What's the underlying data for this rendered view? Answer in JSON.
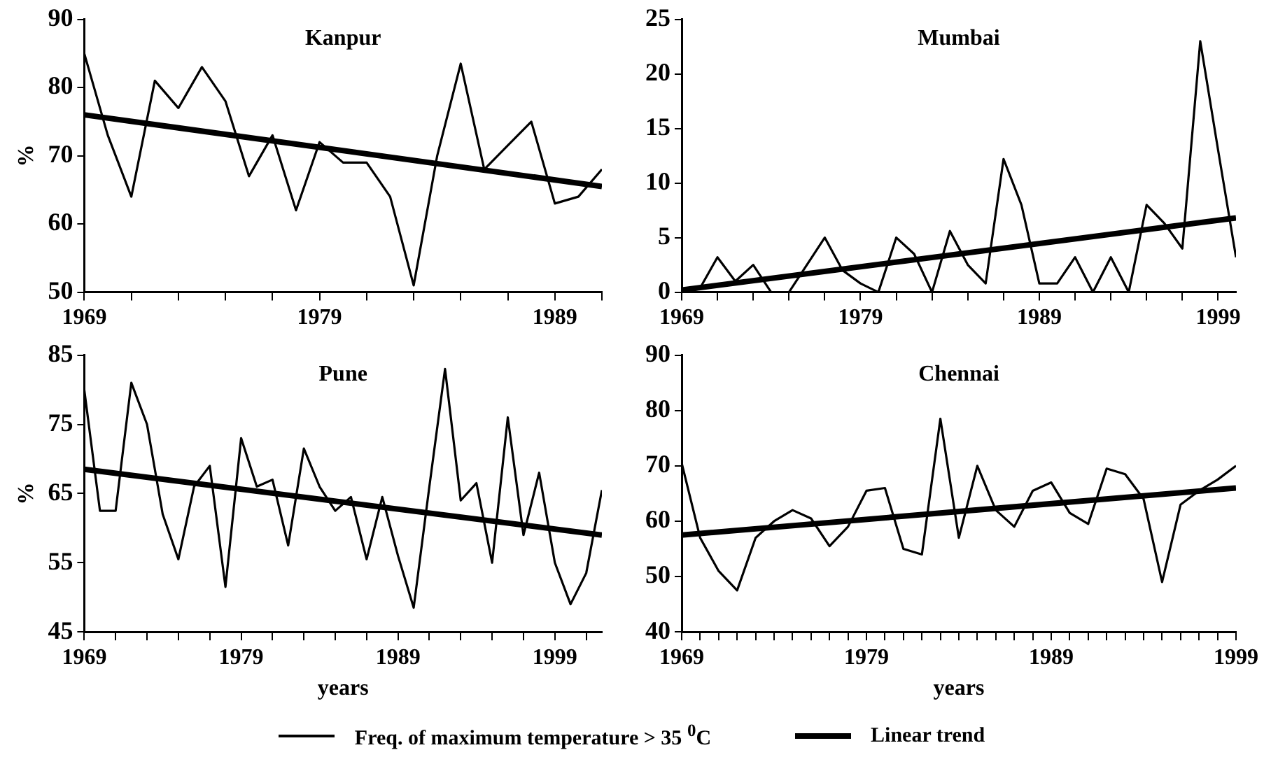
{
  "chart_data": [
    {
      "type": "line",
      "title": "Kanpur",
      "ylabel": "%",
      "x": [
        1969,
        1970,
        1971,
        1972,
        1973,
        1974,
        1975,
        1976,
        1977,
        1978,
        1979,
        1980,
        1981,
        1982,
        1983,
        1984,
        1985,
        1986,
        1987,
        1988,
        1989,
        1990,
        1991
      ],
      "xlim": [
        1969,
        1991
      ],
      "xticks": [
        1969,
        {
          "value": 1971,
          "label": null
        },
        {
          "value": 1973,
          "label": null
        },
        {
          "value": 1975,
          "label": null
        },
        {
          "value": 1977,
          "label": null
        },
        1979,
        {
          "value": 1981,
          "label": null
        },
        {
          "value": 1983,
          "label": null
        },
        {
          "value": 1985,
          "label": null
        },
        {
          "value": 1987,
          "label": null
        },
        1989,
        {
          "value": 1991,
          "label": null
        }
      ],
      "ylim": [
        50,
        90
      ],
      "yticks": [
        50,
        60,
        70,
        80,
        90
      ],
      "grid": false,
      "legend": "bottom",
      "marker": "none",
      "series": [
        {
          "name": "Freq. of maximum temperature > 35 $^{0}$C",
          "color": "#000000",
          "values": [
            85,
            73,
            64,
            81,
            77,
            83,
            78,
            67,
            73,
            62,
            72,
            69,
            69,
            64,
            51,
            70,
            83.5,
            68,
            71.5,
            75,
            63,
            64,
            68
          ]
        },
        {
          "name": "Linear trend",
          "type": "line",
          "color": "#000000",
          "x": [
            1969,
            1991
          ],
          "values": [
            76,
            65.5
          ]
        }
      ]
    },
    {
      "type": "line",
      "title": "Mumbai",
      "x": [
        1969,
        1970,
        1971,
        1972,
        1973,
        1974,
        1975,
        1976,
        1977,
        1978,
        1979,
        1980,
        1981,
        1982,
        1983,
        1984,
        1985,
        1986,
        1987,
        1988,
        1989,
        1990,
        1991,
        1992,
        1993,
        1994,
        1995,
        1996,
        1997,
        1998,
        1999,
        2000
      ],
      "xlim": [
        1969,
        2000
      ],
      "xticks": [
        1969,
        {
          "value": 1971,
          "label": null
        },
        {
          "value": 1973,
          "label": null
        },
        {
          "value": 1975,
          "label": null
        },
        {
          "value": 1977,
          "label": null
        },
        1979,
        {
          "value": 1981,
          "label": null
        },
        {
          "value": 1983,
          "label": null
        },
        {
          "value": 1985,
          "label": null
        },
        {
          "value": 1987,
          "label": null
        },
        1989,
        {
          "value": 1991,
          "label": null
        },
        {
          "value": 1993,
          "label": null
        },
        {
          "value": 1995,
          "label": null
        },
        {
          "value": 1997,
          "label": null
        },
        1999
      ],
      "ylim": [
        0,
        25
      ],
      "yticks": [
        0,
        5,
        10,
        15,
        20,
        25
      ],
      "grid": false,
      "marker": "none",
      "series": [
        {
          "color": "#000000",
          "values": [
            0,
            0.3,
            3.2,
            1,
            2.5,
            0,
            0,
            2.5,
            5,
            2,
            0.8,
            0,
            5,
            3.5,
            0,
            5.6,
            2.5,
            0.8,
            12.2,
            8,
            0.8,
            0.8,
            3.2,
            0,
            3.2,
            0,
            8,
            6.3,
            4,
            23,
            13,
            3.2
          ]
        },
        {
          "type": "line",
          "color": "#000000",
          "x": [
            1969,
            2000
          ],
          "values": [
            0.2,
            6.8
          ]
        }
      ]
    },
    {
      "type": "line",
      "title": "Pune",
      "xlabel": "years",
      "ylabel": "%",
      "x": [
        1969,
        1970,
        1971,
        1972,
        1973,
        1974,
        1975,
        1976,
        1977,
        1978,
        1979,
        1980,
        1981,
        1982,
        1983,
        1984,
        1985,
        1986,
        1987,
        1988,
        1989,
        1990,
        1991,
        1992,
        1993,
        1994,
        1995,
        1996,
        1997,
        1998,
        1999,
        2000,
        2001,
        2002
      ],
      "xlim": [
        1969,
        2002
      ],
      "xticks": [
        1969,
        {
          "value": 1971,
          "label": null
        },
        {
          "value": 1973,
          "label": null
        },
        {
          "value": 1975,
          "label": null
        },
        {
          "value": 1977,
          "label": null
        },
        1979,
        {
          "value": 1981,
          "label": null
        },
        {
          "value": 1983,
          "label": null
        },
        {
          "value": 1985,
          "label": null
        },
        {
          "value": 1987,
          "label": null
        },
        1989,
        {
          "value": 1991,
          "label": null
        },
        {
          "value": 1993,
          "label": null
        },
        {
          "value": 1995,
          "label": null
        },
        {
          "value": 1997,
          "label": null
        },
        1999,
        {
          "value": 2001,
          "label": null
        }
      ],
      "ylim": [
        45,
        85
      ],
      "yticks": [
        45,
        55,
        65,
        75,
        85
      ],
      "grid": false,
      "marker": "none",
      "series": [
        {
          "color": "#000000",
          "values": [
            80,
            62.5,
            62.5,
            81,
            75,
            62,
            55.5,
            66,
            69,
            51.5,
            73,
            66,
            67,
            57.5,
            71.5,
            66,
            62.5,
            64.5,
            55.5,
            64.5,
            56,
            48.5,
            66,
            83,
            64,
            66.5,
            55,
            76,
            59,
            68,
            55,
            49,
            53.5,
            65.5
          ]
        },
        {
          "type": "line",
          "color": "#000000",
          "x": [
            1969,
            2002
          ],
          "values": [
            68.5,
            59
          ]
        }
      ]
    },
    {
      "type": "line",
      "title": "Chennai",
      "xlabel": "years",
      "x": [
        1969,
        1970,
        1971,
        1972,
        1973,
        1974,
        1975,
        1976,
        1977,
        1978,
        1979,
        1980,
        1981,
        1982,
        1983,
        1984,
        1985,
        1986,
        1987,
        1988,
        1989,
        1990,
        1991,
        1992,
        1993,
        1994,
        1995,
        1996,
        1997,
        1998,
        1999
      ],
      "xlim": [
        1969,
        1999
      ],
      "xticks": [
        1969,
        {
          "value": 1970,
          "label": null
        },
        {
          "value": 1971,
          "label": null
        },
        {
          "value": 1972,
          "label": null
        },
        {
          "value": 1973,
          "label": null
        },
        {
          "value": 1974,
          "label": null
        },
        {
          "value": 1975,
          "label": null
        },
        {
          "value": 1976,
          "label": null
        },
        {
          "value": 1977,
          "label": null
        },
        {
          "value": 1978,
          "label": null
        },
        1979,
        {
          "value": 1980,
          "label": null
        },
        {
          "value": 1981,
          "label": null
        },
        {
          "value": 1982,
          "label": null
        },
        {
          "value": 1983,
          "label": null
        },
        {
          "value": 1984,
          "label": null
        },
        {
          "value": 1985,
          "label": null
        },
        {
          "value": 1986,
          "label": null
        },
        {
          "value": 1987,
          "label": null
        },
        {
          "value": 1988,
          "label": null
        },
        1989,
        {
          "value": 1990,
          "label": null
        },
        {
          "value": 1991,
          "label": null
        },
        {
          "value": 1992,
          "label": null
        },
        {
          "value": 1993,
          "label": null
        },
        {
          "value": 1994,
          "label": null
        },
        {
          "value": 1995,
          "label": null
        },
        {
          "value": 1996,
          "label": null
        },
        {
          "value": 1997,
          "label": null
        },
        {
          "value": 1998,
          "label": null
        },
        1999
      ],
      "ylim": [
        40,
        90
      ],
      "yticks": [
        40,
        50,
        60,
        70,
        80,
        90
      ],
      "grid": false,
      "marker": "none",
      "series": [
        {
          "color": "#000000",
          "values": [
            70.5,
            57,
            51,
            47.5,
            57,
            60,
            62,
            60.5,
            55.5,
            59,
            65.5,
            66,
            55,
            54,
            78.5,
            57,
            70,
            62,
            59,
            65.5,
            67,
            61.5,
            59.5,
            69.5,
            68.5,
            64,
            49,
            63,
            65.5,
            67.5,
            70
          ]
        },
        {
          "type": "line",
          "color": "#000000",
          "x": [
            1969,
            1999
          ],
          "values": [
            57.5,
            66
          ]
        }
      ]
    }
  ]
}
